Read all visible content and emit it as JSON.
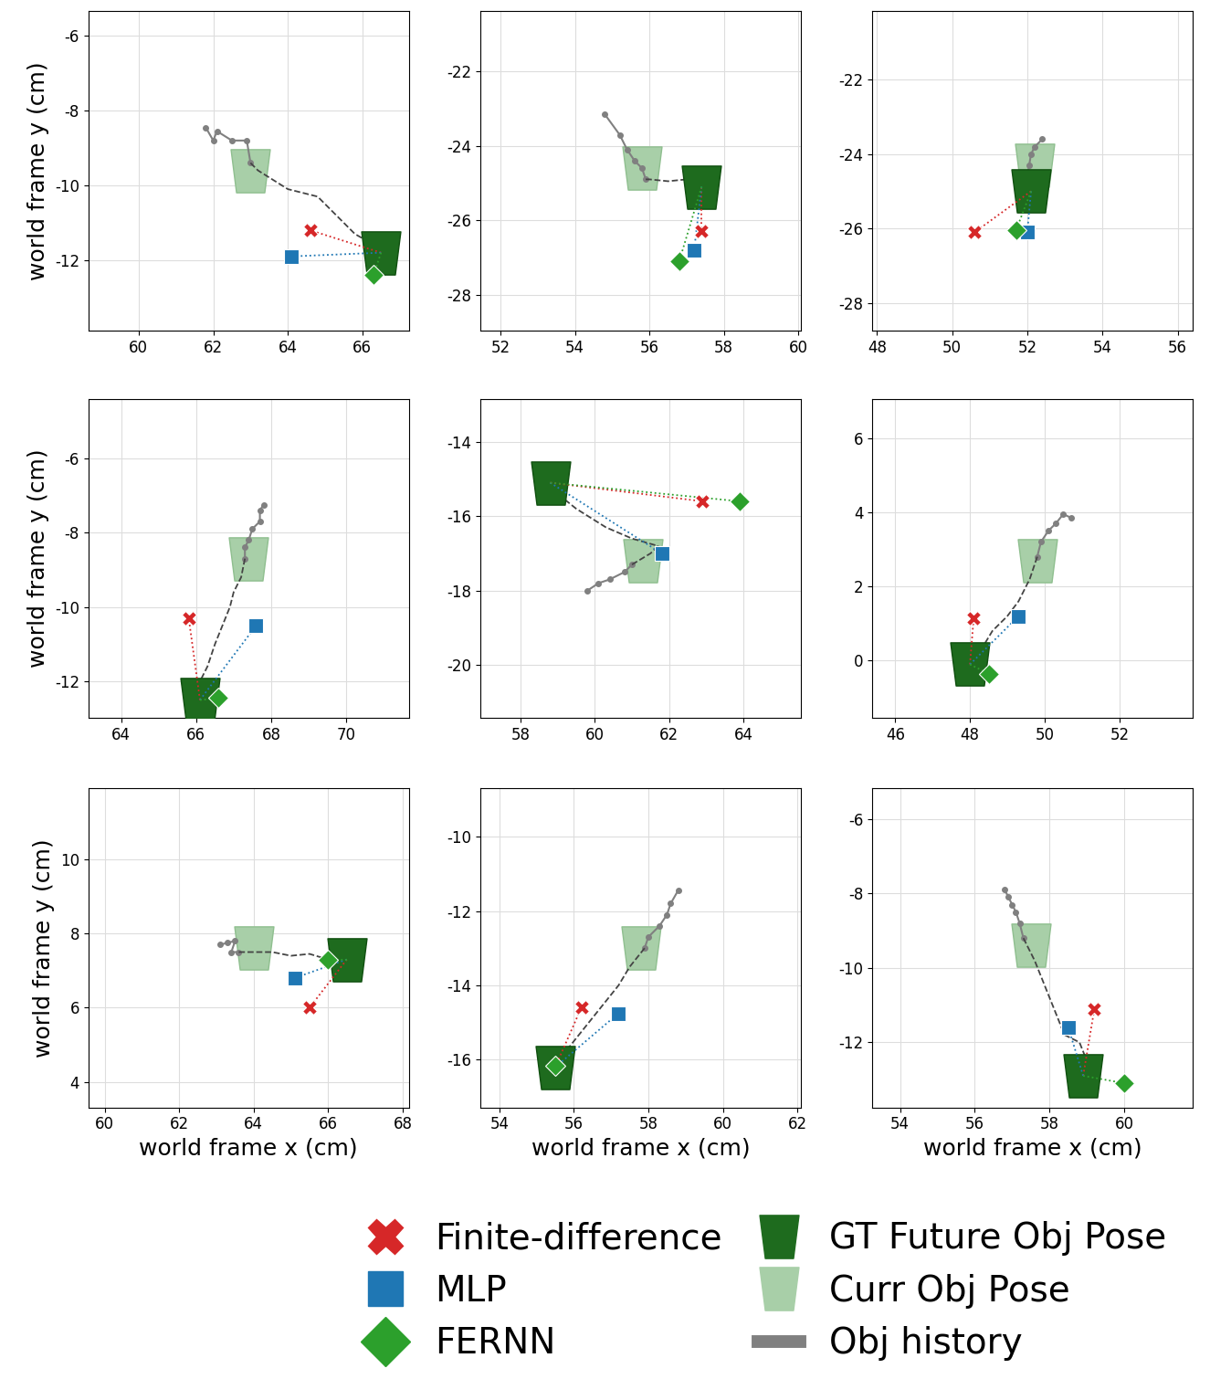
{
  "series": [
    {
      "name": "Finite-difference",
      "color": "#d62728",
      "marker": "X"
    },
    {
      "name": "MLP",
      "color": "#1f77b4",
      "marker": "s"
    },
    {
      "name": "FERNN",
      "color": "#2ca02c",
      "marker": "D"
    },
    {
      "name": "GT Future Obj Pose",
      "color": "#1e6b1e",
      "marker": "cup"
    },
    {
      "name": "Curr Obj Pose",
      "color": "#a8cfa8",
      "marker": "cup"
    },
    {
      "name": "Obj history",
      "color": "#808080",
      "marker": "line"
    }
  ],
  "chart_data": [
    {
      "type": "scatter",
      "grid": true,
      "ylabel": "world frame y (cm)",
      "xlim": [
        58.65,
        67.25
      ],
      "ylim": [
        -13.88,
        -5.34
      ],
      "xticks": [
        60,
        62,
        64,
        66
      ],
      "yticks": [
        -6,
        -8,
        -10,
        -12
      ],
      "history": {
        "x": [
          61.8,
          62.0,
          62.1,
          62.5,
          62.9,
          63.0
        ],
        "y": [
          -8.45,
          -8.8,
          -8.55,
          -8.8,
          -8.8,
          -9.4
        ]
      },
      "path": {
        "x": [
          63.0,
          63.2,
          64.0,
          64.8,
          65.3,
          65.8,
          66.5
        ],
        "y": [
          -9.4,
          -9.6,
          -10.1,
          -10.3,
          -10.8,
          -11.3,
          -11.7
        ]
      },
      "current": [
        63.0,
        -9.6
      ],
      "future": [
        66.5,
        -11.8
      ],
      "predictions": {
        "Finite-difference": [
          64.6,
          -11.2
        ],
        "MLP": [
          64.1,
          -11.9
        ],
        "FERNN": [
          66.3,
          -12.4
        ]
      }
    },
    {
      "type": "scatter",
      "grid": true,
      "xlim": [
        51.46,
        60.07
      ],
      "ylim": [
        -28.96,
        -20.38
      ],
      "xticks": [
        52,
        54,
        56,
        58,
        60
      ],
      "yticks": [
        -22,
        -24,
        -26,
        -28
      ],
      "history": {
        "x": [
          54.8,
          55.2,
          55.4,
          55.6,
          55.8,
          55.9
        ],
        "y": [
          -23.15,
          -23.7,
          -24.1,
          -24.4,
          -24.6,
          -24.9
        ]
      },
      "path": {
        "x": [
          55.9,
          56.0,
          56.5,
          57.0,
          57.5
        ],
        "y": [
          -24.9,
          -24.9,
          -24.95,
          -24.9,
          -25.0
        ]
      },
      "current": [
        55.8,
        -24.6
      ],
      "future": [
        57.4,
        -25.1
      ],
      "predictions": {
        "Finite-difference": [
          57.4,
          -26.3
        ],
        "MLP": [
          57.2,
          -26.8
        ],
        "FERNN": [
          56.8,
          -27.1
        ]
      }
    },
    {
      "type": "scatter",
      "grid": true,
      "xlim": [
        47.88,
        56.41
      ],
      "ylim": [
        -28.74,
        -20.16
      ],
      "xticks": [
        48,
        50,
        52,
        54,
        56
      ],
      "yticks": [
        -22,
        -24,
        -26,
        -28
      ],
      "history": {
        "x": [
          52.4,
          52.2,
          52.1,
          52.05,
          52.0
        ],
        "y": [
          -23.6,
          -23.8,
          -24.0,
          -24.3,
          -24.6
        ]
      },
      "path": {
        "x": [
          52.0,
          52.2,
          52.1
        ],
        "y": [
          -24.6,
          -24.6,
          -25.0
        ]
      },
      "current": [
        52.2,
        -24.3
      ],
      "future": [
        52.1,
        -25.0
      ],
      "predictions": {
        "Finite-difference": [
          50.6,
          -26.1
        ],
        "MLP": [
          52.0,
          -26.1
        ],
        "FERNN": [
          51.7,
          -26.05
        ]
      }
    },
    {
      "type": "scatter",
      "grid": true,
      "ylabel": "world frame y (cm)",
      "xlim": [
        63.12,
        71.68
      ],
      "ylim": [
        -12.99,
        -4.41
      ],
      "xticks": [
        64,
        66,
        68,
        70
      ],
      "yticks": [
        -6,
        -8,
        -10,
        -12
      ],
      "history": {
        "x": [
          67.8,
          67.7,
          67.7,
          67.5,
          67.4,
          67.3,
          67.3
        ],
        "y": [
          -7.25,
          -7.4,
          -7.7,
          -7.9,
          -8.2,
          -8.4,
          -8.7
        ]
      },
      "path": {
        "x": [
          67.3,
          67.2,
          67.0,
          66.9,
          66.7,
          66.5,
          66.3,
          66.1
        ],
        "y": [
          -8.7,
          -9.2,
          -9.6,
          -10.0,
          -10.5,
          -11.0,
          -11.6,
          -12.0
        ]
      },
      "current": [
        67.4,
        -8.7
      ],
      "future": [
        66.1,
        -12.5
      ],
      "predictions": {
        "Finite-difference": [
          65.8,
          -10.3
        ],
        "MLP": [
          67.6,
          -10.5
        ],
        "FERNN": [
          66.6,
          -12.45
        ]
      }
    },
    {
      "type": "scatter",
      "grid": true,
      "xlim": [
        56.92,
        65.55
      ],
      "ylim": [
        -21.43,
        -12.85
      ],
      "xticks": [
        58,
        60,
        62,
        64
      ],
      "yticks": [
        -14,
        -16,
        -18,
        -20
      ],
      "history": {
        "x": [
          59.8,
          60.1,
          60.4,
          60.8,
          61.0
        ],
        "y": [
          -18.0,
          -17.8,
          -17.7,
          -17.5,
          -17.3
        ]
      },
      "path": {
        "x": [
          61.0,
          61.5,
          61.7,
          61.0,
          60.3,
          59.5,
          59.0
        ],
        "y": [
          -17.3,
          -17.0,
          -16.8,
          -16.6,
          -16.3,
          -15.8,
          -15.4
        ]
      },
      "current": [
        61.3,
        -17.2
      ],
      "future": [
        58.8,
        -15.1
      ],
      "predictions": {
        "Finite-difference": [
          62.9,
          -15.6
        ],
        "MLP": [
          61.8,
          -17.0
        ],
        "FERNN": [
          63.9,
          -15.6
        ]
      }
    },
    {
      "type": "scatter",
      "grid": true,
      "xlim": [
        45.39,
        53.97
      ],
      "ylim": [
        -1.55,
        7.05
      ],
      "xticks": [
        46,
        48,
        50,
        52
      ],
      "yticks": [
        0,
        2,
        4,
        6
      ],
      "history": {
        "x": [
          50.7,
          50.5,
          50.3,
          50.1,
          49.9,
          49.8
        ],
        "y": [
          3.85,
          3.95,
          3.7,
          3.5,
          3.2,
          2.8
        ]
      },
      "path": {
        "x": [
          49.8,
          49.6,
          49.3,
          49.0,
          48.6,
          48.3,
          48.0
        ],
        "y": [
          2.8,
          2.2,
          1.6,
          1.2,
          0.8,
          0.3,
          0.0
        ]
      },
      "current": [
        49.8,
        2.7
      ],
      "future": [
        48.0,
        -0.1
      ],
      "predictions": {
        "Finite-difference": [
          48.1,
          1.15
        ],
        "MLP": [
          49.3,
          1.2
        ],
        "FERNN": [
          48.5,
          -0.35
        ]
      }
    },
    {
      "type": "scatter",
      "grid": true,
      "ylabel": "world frame y (cm)",
      "xlabel": "world frame x (cm)",
      "xlim": [
        59.56,
        68.17
      ],
      "ylim": [
        3.31,
        11.92
      ],
      "xticks": [
        60,
        62,
        64,
        66,
        68
      ],
      "yticks": [
        4,
        6,
        8,
        10
      ],
      "history": {
        "x": [
          63.1,
          63.3,
          63.5,
          63.4,
          63.6
        ],
        "y": [
          7.7,
          7.75,
          7.8,
          7.5,
          7.5
        ]
      },
      "path": {
        "x": [
          63.6,
          64.5,
          65.0,
          65.5,
          66.0,
          66.5
        ],
        "y": [
          7.5,
          7.5,
          7.4,
          7.45,
          7.3,
          7.2
        ]
      },
      "current": [
        64.0,
        7.6
      ],
      "future": [
        66.5,
        7.3
      ],
      "predictions": {
        "Finite-difference": [
          65.5,
          6.0
        ],
        "MLP": [
          65.1,
          6.8
        ],
        "FERNN": [
          66.0,
          7.3
        ]
      }
    },
    {
      "type": "scatter",
      "grid": true,
      "xlabel": "world frame x (cm)",
      "xlim": [
        53.49,
        62.1
      ],
      "ylim": [
        -17.28,
        -8.7
      ],
      "xticks": [
        54,
        56,
        58,
        60,
        62
      ],
      "yticks": [
        -10,
        -12,
        -14,
        -16
      ],
      "history": {
        "x": [
          58.8,
          58.6,
          58.5,
          58.3,
          58.0,
          57.9
        ],
        "y": [
          -11.45,
          -11.8,
          -12.1,
          -12.4,
          -12.7,
          -13.0
        ]
      },
      "path": {
        "x": [
          57.9,
          57.5,
          57.2,
          56.8,
          56.4,
          56.0,
          55.6
        ],
        "y": [
          -13.0,
          -13.5,
          -14.0,
          -14.5,
          -15.0,
          -15.5,
          -16.0
        ]
      },
      "current": [
        57.8,
        -13.0
      ],
      "future": [
        55.5,
        -16.2
      ],
      "predictions": {
        "Finite-difference": [
          56.2,
          -14.6
        ],
        "MLP": [
          57.2,
          -14.75
        ],
        "FERNN": [
          55.5,
          -16.15
        ]
      }
    },
    {
      "type": "scatter",
      "grid": true,
      "xlabel": "world frame x (cm)",
      "xlim": [
        53.26,
        61.84
      ],
      "ylim": [
        -13.75,
        -5.17
      ],
      "xticks": [
        54,
        56,
        58,
        60
      ],
      "yticks": [
        -6,
        -8,
        -10,
        -12
      ],
      "history": {
        "x": [
          56.8,
          56.9,
          57.0,
          57.1,
          57.2,
          57.3
        ],
        "y": [
          -7.9,
          -8.1,
          -8.3,
          -8.5,
          -8.8,
          -9.2
        ]
      },
      "path": {
        "x": [
          57.3,
          57.6,
          57.8,
          58.0,
          58.2,
          58.4,
          58.8,
          59.0
        ],
        "y": [
          -9.2,
          -9.8,
          -10.3,
          -10.8,
          -11.3,
          -11.8,
          -12.0,
          -12.5
        ]
      },
      "current": [
        57.5,
        -9.4
      ],
      "future": [
        58.9,
        -12.9
      ],
      "predictions": {
        "Finite-difference": [
          59.2,
          -11.1
        ],
        "MLP": [
          58.5,
          -11.6
        ],
        "FERNN": [
          60.0,
          -13.1
        ]
      }
    }
  ]
}
